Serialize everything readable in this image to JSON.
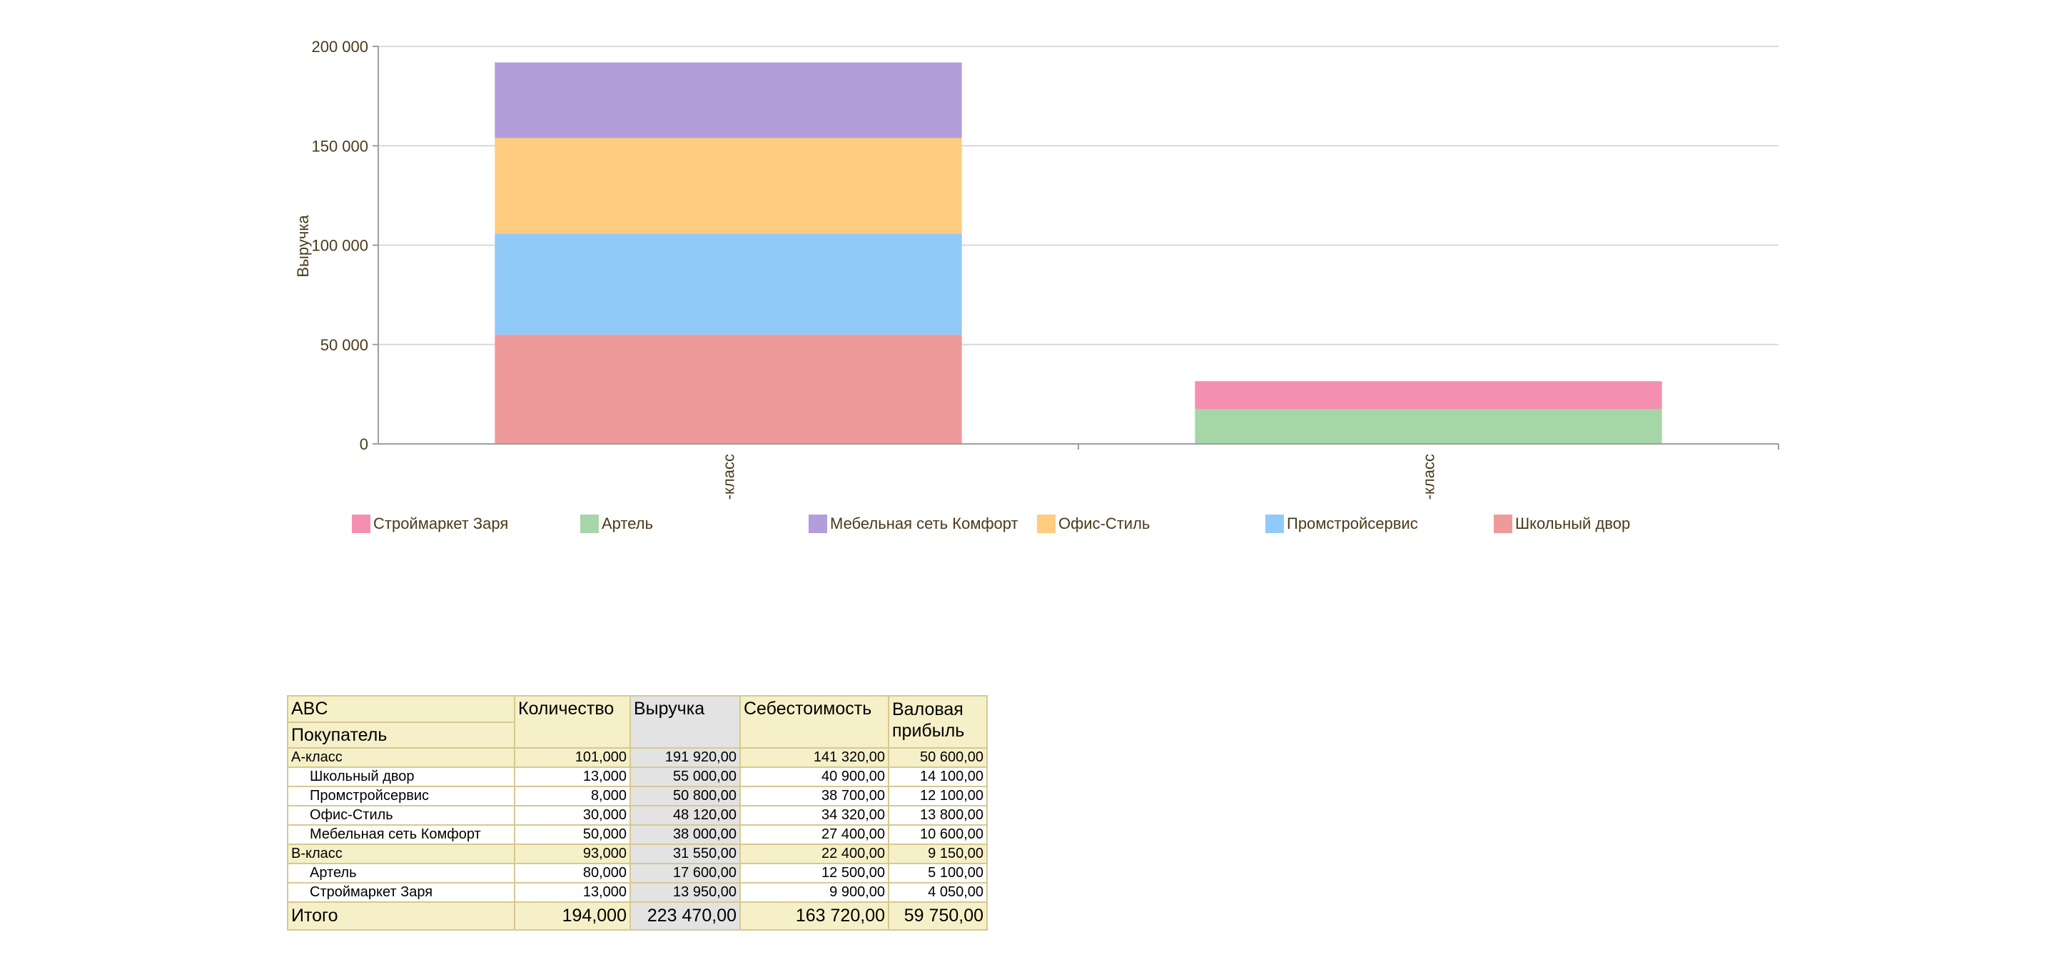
{
  "chart_data": {
    "type": "bar",
    "stacked": true,
    "categories": [
      "А-класс",
      "В-класс"
    ],
    "ylabel": "Выручка",
    "ylim": [
      0,
      200000
    ],
    "yticks": [
      "0",
      "50 000",
      "100 000",
      "150 000",
      "200 000"
    ],
    "ytick_values": [
      0,
      50000,
      100000,
      150000,
      200000
    ],
    "grid": true,
    "legend_position": "bottom",
    "series": [
      {
        "name": "Строймаркет Заря",
        "color": "#f48fb1",
        "values": [
          0,
          13950
        ]
      },
      {
        "name": "Артель",
        "color": "#a5d6a7",
        "values": [
          0,
          17600
        ]
      },
      {
        "name": "Мебельная сеть Комфорт",
        "color": "#b39ddb",
        "values": [
          38000,
          0
        ]
      },
      {
        "name": "Офис-Стиль",
        "color": "#ffcc80",
        "values": [
          48120,
          0
        ]
      },
      {
        "name": "Промстройсервис",
        "color": "#90caf9",
        "values": [
          50800,
          0
        ]
      },
      {
        "name": "Школьный двор",
        "color": "#ef9a9a",
        "values": [
          55000,
          0
        ]
      }
    ],
    "stack_order_bottom_to_top": [
      "Школьный двор",
      "Промстройсервис",
      "Офис-Стиль",
      "Мебельная сеть Комфорт",
      "Артель",
      "Строймаркет Заря"
    ]
  },
  "table": {
    "headers": {
      "abc": "ABC",
      "buyer": "Покупатель",
      "qty": "Количество",
      "revenue": "Выручка",
      "cost": "Себестоимость",
      "profit_line1": "Валовая",
      "profit_line2": "прибыль"
    },
    "rows": [
      {
        "kind": "group",
        "name": "А-класс",
        "qty": "101,000",
        "revenue": "191 920,00",
        "cost": "141 320,00",
        "profit": "50 600,00"
      },
      {
        "kind": "detail",
        "name": "Школьный двор",
        "qty": "13,000",
        "revenue": "55 000,00",
        "cost": "40 900,00",
        "profit": "14 100,00"
      },
      {
        "kind": "detail",
        "name": "Промстройсервис",
        "qty": "8,000",
        "revenue": "50 800,00",
        "cost": "38 700,00",
        "profit": "12 100,00"
      },
      {
        "kind": "detail",
        "name": "Офис-Стиль",
        "qty": "30,000",
        "revenue": "48 120,00",
        "cost": "34 320,00",
        "profit": "13 800,00"
      },
      {
        "kind": "detail",
        "name": "Мебельная сеть Комфорт",
        "qty": "50,000",
        "revenue": "38 000,00",
        "cost": "27 400,00",
        "profit": "10 600,00"
      },
      {
        "kind": "group",
        "name": "В-класс",
        "qty": "93,000",
        "revenue": "31 550,00",
        "cost": "22 400,00",
        "profit": "9 150,00"
      },
      {
        "kind": "detail",
        "name": "Артель",
        "qty": "80,000",
        "revenue": "17 600,00",
        "cost": "12 500,00",
        "profit": "5 100,00"
      },
      {
        "kind": "detail",
        "name": "Строймаркет Заря",
        "qty": "13,000",
        "revenue": "13 950,00",
        "cost": "9 900,00",
        "profit": "4 050,00"
      }
    ],
    "total": {
      "name": "Итого",
      "qty": "194,000",
      "revenue": "223 470,00",
      "cost": "163 720,00",
      "profit": "59 750,00"
    }
  }
}
